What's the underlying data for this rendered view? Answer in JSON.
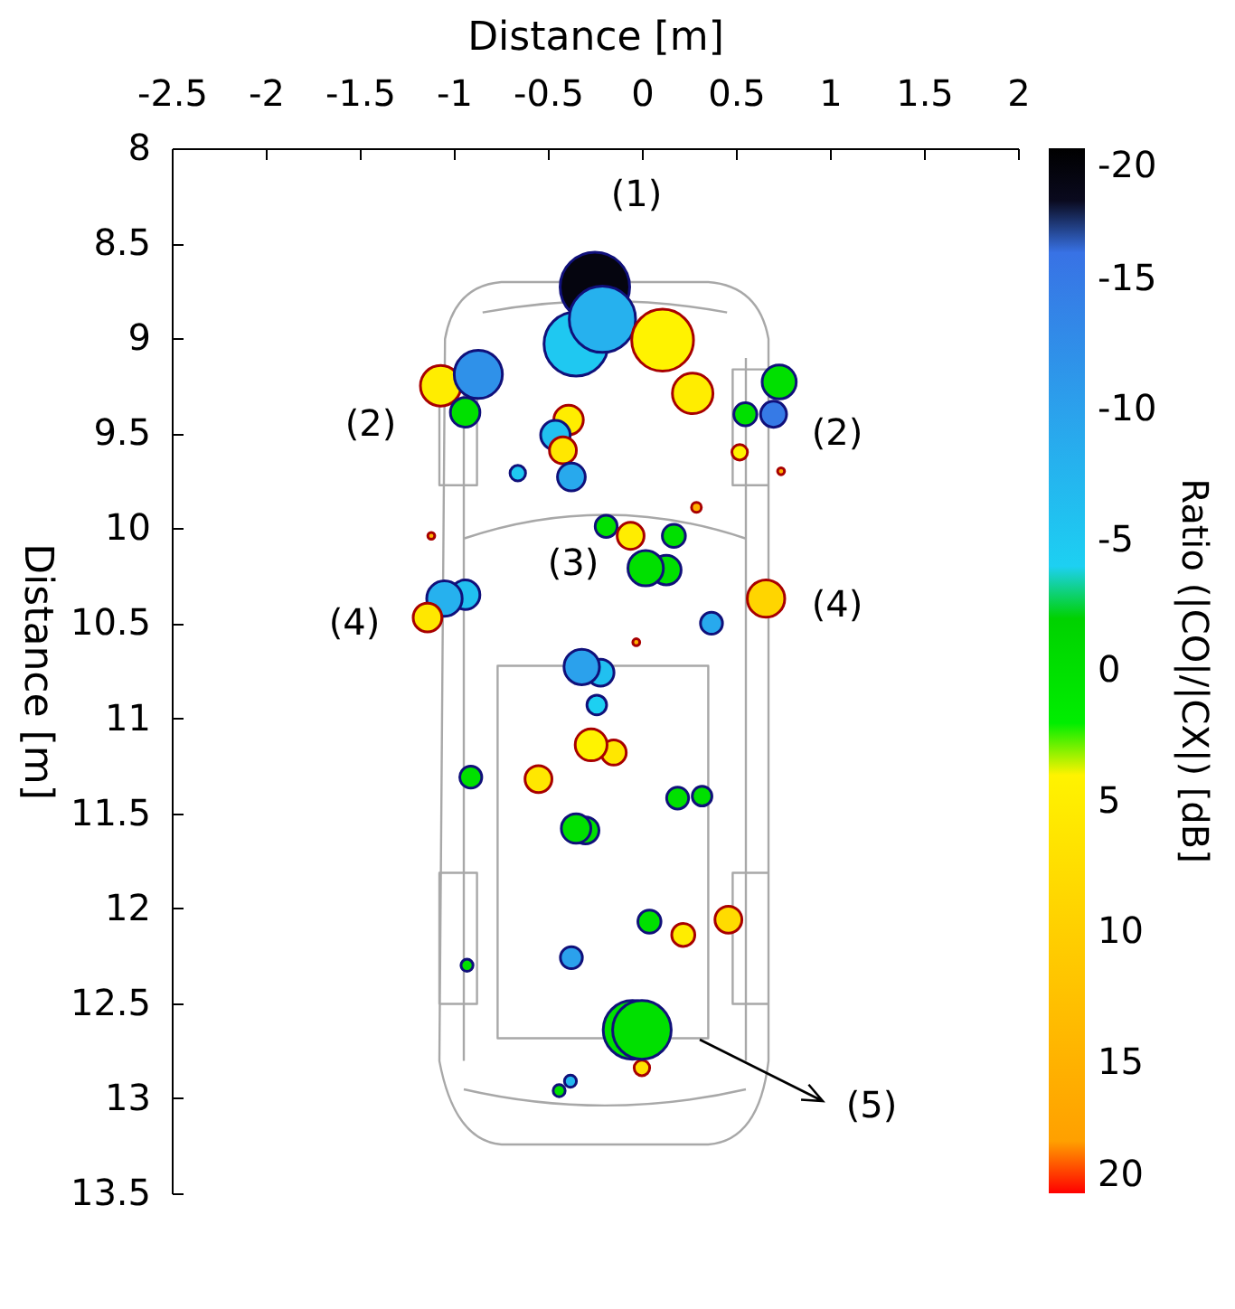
{
  "chart_data": {
    "type": "bubble",
    "xlabel": "Distance [m]",
    "ylabel": "Distance [m]",
    "clabel": "Ratio (|CO|/|CX|) [dB]",
    "x": [
      -0.25,
      -0.35,
      -0.21,
      0.11,
      0.27,
      -1.07,
      -0.87,
      -0.94,
      0.73,
      0.55,
      0.7,
      0.52,
      -0.66,
      -0.39,
      -0.46,
      -0.42,
      -0.375,
      0.74,
      0.29,
      -1.12,
      -0.19,
      -0.06,
      0.17,
      0.13,
      0.02,
      -0.94,
      -1.05,
      -1.14,
      0.66,
      0.37,
      -0.03,
      -0.22,
      -0.32,
      -0.24,
      -0.15,
      -0.27,
      -0.55,
      -0.91,
      0.19,
      0.32,
      -0.3,
      -0.35,
      0.04,
      0.22,
      0.46,
      -0.375,
      -0.93,
      0.0,
      -0.05,
      0.0,
      -0.38,
      -0.44
    ],
    "values": [
      8.73,
      9.03,
      8.9,
      9.01,
      9.29,
      9.25,
      9.19,
      9.39,
      9.23,
      9.4,
      9.4,
      9.6,
      9.71,
      9.43,
      9.51,
      9.59,
      9.73,
      9.7,
      9.89,
      10.04,
      9.99,
      10.04,
      10.04,
      10.22,
      10.21,
      10.35,
      10.37,
      10.47,
      10.37,
      10.5,
      10.6,
      10.76,
      10.73,
      10.93,
      11.18,
      11.14,
      11.32,
      11.31,
      11.42,
      11.41,
      11.59,
      11.58,
      12.07,
      12.14,
      12.06,
      12.26,
      12.3,
      12.84,
      12.64,
      12.64,
      12.91,
      12.96
    ],
    "sizes": [
      1.0,
      0.85,
      0.91,
      0.79,
      0.34,
      0.34,
      0.48,
      0.18,
      0.24,
      0.11,
      0.14,
      0.05,
      0.05,
      0.18,
      0.18,
      0.15,
      0.16,
      0.01,
      0.02,
      0.01,
      0.1,
      0.15,
      0.11,
      0.18,
      0.26,
      0.18,
      0.26,
      0.17,
      0.29,
      0.1,
      0.01,
      0.15,
      0.26,
      0.08,
      0.13,
      0.21,
      0.15,
      0.1,
      0.1,
      0.08,
      0.15,
      0.18,
      0.11,
      0.11,
      0.15,
      0.1,
      0.03,
      0.05,
      0.71,
      0.71,
      0.03,
      0.03
    ],
    "cvalues": [
      -19,
      -5,
      -8,
      4,
      5,
      5,
      -12,
      0,
      0,
      0,
      -15,
      4,
      -5,
      5,
      -6,
      6,
      -9,
      15,
      15,
      15,
      0,
      5,
      0,
      0,
      0,
      -6,
      -8,
      6,
      9,
      -9,
      15,
      -6,
      -10,
      -4,
      6,
      4,
      6,
      0,
      0,
      0,
      0,
      0,
      0,
      5,
      8,
      -10,
      0,
      7,
      0,
      0,
      -7,
      0
    ],
    "xlim": [
      -2.5,
      2
    ],
    "xticks": [
      -2.5,
      -2,
      -1.5,
      -1,
      -0.5,
      0,
      0.5,
      1,
      1.5,
      2
    ],
    "ylim": [
      13.5,
      8
    ],
    "yticks": [
      8,
      8.5,
      9,
      9.5,
      10,
      10.5,
      11,
      11.5,
      12,
      12.5,
      13,
      13.5
    ],
    "clim": [
      20,
      -20
    ],
    "cticks": [
      -20,
      -15,
      -10,
      -5,
      0,
      5,
      10,
      15,
      20
    ],
    "annotations": [
      "(1)",
      "(2)",
      "(2)",
      "(3)",
      "(4)",
      "(4)",
      "(5)"
    ]
  }
}
